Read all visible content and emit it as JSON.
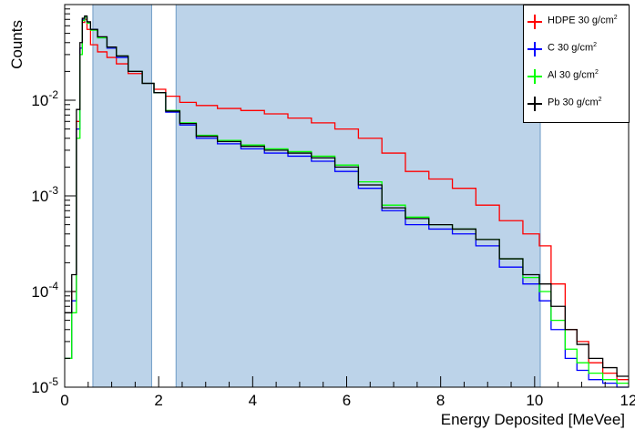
{
  "chart_data": {
    "type": "step-histogram",
    "title": "",
    "xlabel": "Energy Deposited [MeVee]",
    "ylabel": "Counts",
    "xlim": [
      0,
      12
    ],
    "ylim": [
      1e-05,
      0.1
    ],
    "yscale": "log",
    "x_ticks": [
      "0",
      "2",
      "4",
      "6",
      "8",
      "10",
      "12"
    ],
    "y_ticks": [
      {
        "base": "10",
        "exp": "-5"
      },
      {
        "base": "10",
        "exp": "-4"
      },
      {
        "base": "10",
        "exp": "-3"
      },
      {
        "base": "10",
        "exp": "-2"
      }
    ],
    "legend_position": "top-right",
    "shaded_regions": [
      [
        0.6,
        1.85
      ],
      [
        2.37,
        10.12
      ]
    ],
    "shade_color": "#bcd3e9",
    "x": [
      0.1,
      0.2,
      0.3,
      0.35,
      0.4,
      0.45,
      0.5,
      0.6,
      0.8,
      1.0,
      1.2,
      1.5,
      1.8,
      2.0,
      2.3,
      2.6,
      3.0,
      3.5,
      4.0,
      4.5,
      5.0,
      5.5,
      6.0,
      6.5,
      7.0,
      7.5,
      8.0,
      8.5,
      9.0,
      9.5,
      10.0,
      10.2,
      10.5,
      10.8,
      11.0,
      11.3,
      11.6,
      11.9
    ],
    "series": [
      {
        "name": "HDPE 30 g/cm2",
        "label": "HDPE 30 g/cm",
        "sup": "2",
        "color": "#ff0000",
        "values": [
          2e-05,
          0.0001,
          0.006,
          0.035,
          0.065,
          0.07,
          0.055,
          0.038,
          0.032,
          0.028,
          0.024,
          0.019,
          0.015,
          0.013,
          0.011,
          0.0095,
          0.0088,
          0.0082,
          0.0078,
          0.0072,
          0.0065,
          0.0058,
          0.005,
          0.004,
          0.0028,
          0.0018,
          0.0015,
          0.0012,
          0.0008,
          0.00055,
          0.0004,
          0.0003,
          0.00012,
          4e-05,
          3e-05,
          1.8e-05,
          1.4e-05,
          1.2e-05
        ]
      },
      {
        "name": "C 30 g/cm2",
        "label": "C 30 g/cm",
        "sup": "2",
        "color": "#0000ff",
        "values": [
          2e-05,
          8e-05,
          0.005,
          0.035,
          0.07,
          0.075,
          0.065,
          0.055,
          0.045,
          0.035,
          0.028,
          0.02,
          0.015,
          0.012,
          0.0075,
          0.0055,
          0.004,
          0.0035,
          0.0031,
          0.0028,
          0.0026,
          0.0023,
          0.0018,
          0.0012,
          0.0007,
          0.0005,
          0.00045,
          0.0004,
          0.0003,
          0.00018,
          0.00012,
          8e-05,
          4e-05,
          2e-05,
          1.5e-05,
          1.2e-05,
          1.1e-05,
          1e-05
        ]
      },
      {
        "name": "Al 30 g/cm2",
        "label": "Al 30 g/cm",
        "sup": "2",
        "color": "#00ff00",
        "values": [
          2e-05,
          6e-05,
          0.004,
          0.03,
          0.068,
          0.074,
          0.064,
          0.054,
          0.045,
          0.036,
          0.029,
          0.02,
          0.015,
          0.012,
          0.0078,
          0.0058,
          0.0043,
          0.0038,
          0.0034,
          0.0031,
          0.0029,
          0.0026,
          0.0021,
          0.0014,
          0.0008,
          0.0006,
          0.0005,
          0.00045,
          0.00035,
          0.00022,
          0.00014,
          0.0001,
          5e-05,
          2.5e-05,
          1.8e-05,
          1.4e-05,
          1.2e-05,
          1.1e-05
        ]
      },
      {
        "name": "Pb 30 g/cm2",
        "label": "Pb 30 g/cm",
        "sup": "2",
        "color": "#000000",
        "values": [
          6e-05,
          0.00015,
          0.008,
          0.04,
          0.072,
          0.076,
          0.066,
          0.055,
          0.046,
          0.036,
          0.029,
          0.02,
          0.015,
          0.012,
          0.0077,
          0.0057,
          0.0042,
          0.0037,
          0.0033,
          0.003,
          0.0028,
          0.0025,
          0.002,
          0.0013,
          0.00075,
          0.00058,
          0.0005,
          0.00045,
          0.00035,
          0.00022,
          0.00015,
          0.00012,
          7e-05,
          4e-05,
          2.8e-05,
          2e-05,
          1.6e-05,
          1.3e-05
        ]
      }
    ]
  }
}
